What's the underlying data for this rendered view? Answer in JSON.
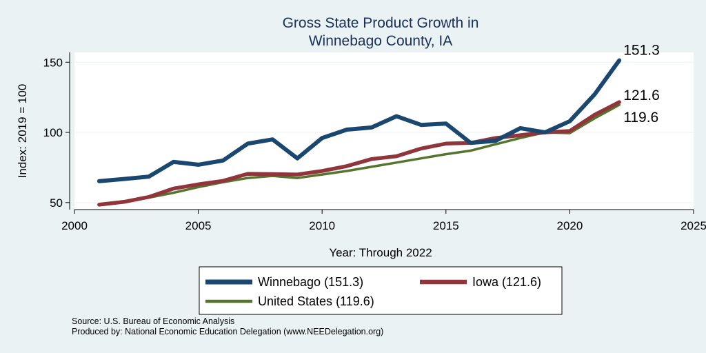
{
  "chart_data": {
    "type": "line",
    "title": [
      "Gross State Product Growth in",
      "Winnebago County, IA"
    ],
    "xlabel": "Year: Through 2022",
    "ylabel": "Index: 2019 = 100",
    "xlim": [
      2000,
      2025
    ],
    "ylim": [
      45,
      157
    ],
    "xticks": [
      2000,
      2005,
      2010,
      2015,
      2020,
      2025
    ],
    "yticks": [
      50,
      100,
      150
    ],
    "grid": true,
    "legend_position": "bottom",
    "x": [
      2001,
      2002,
      2003,
      2004,
      2005,
      2006,
      2007,
      2008,
      2009,
      2010,
      2011,
      2012,
      2013,
      2014,
      2015,
      2016,
      2017,
      2018,
      2019,
      2020,
      2021,
      2022
    ],
    "series": [
      {
        "name": "Winnebago  (151.3)",
        "color": "#1a476f",
        "values": [
          65.3,
          66.8,
          68.5,
          79,
          77,
          80,
          92,
          95,
          81.5,
          96,
          102,
          103.5,
          111.5,
          105.3,
          106.3,
          92.5,
          94,
          103,
          100,
          108,
          127,
          151.3
        ],
        "end_label": "151.3"
      },
      {
        "name": "Iowa (121.6)",
        "color": "#90353b",
        "values": [
          48.5,
          50.5,
          54,
          60,
          63,
          65.5,
          70.5,
          70.3,
          70,
          72.5,
          76,
          81,
          83,
          88.5,
          92,
          92.5,
          96,
          98,
          100,
          101,
          112.5,
          121.6
        ],
        "end_label": "121.6"
      },
      {
        "name": "United States (119.6)",
        "color": "#55752f",
        "values": [
          49,
          51,
          53.5,
          57,
          61,
          64.5,
          67.5,
          69,
          67.5,
          70,
          72.5,
          75.5,
          78.5,
          81.5,
          84.5,
          87,
          91.5,
          96,
          100,
          99.5,
          110,
          119.6
        ],
        "end_label": "119.6"
      }
    ]
  },
  "notes": {
    "source": "Source: U.S. Bureau of Economic Analysis",
    "produced": "Produced by: National Economic Education Delegation (www.NEEDelegation.org)"
  }
}
